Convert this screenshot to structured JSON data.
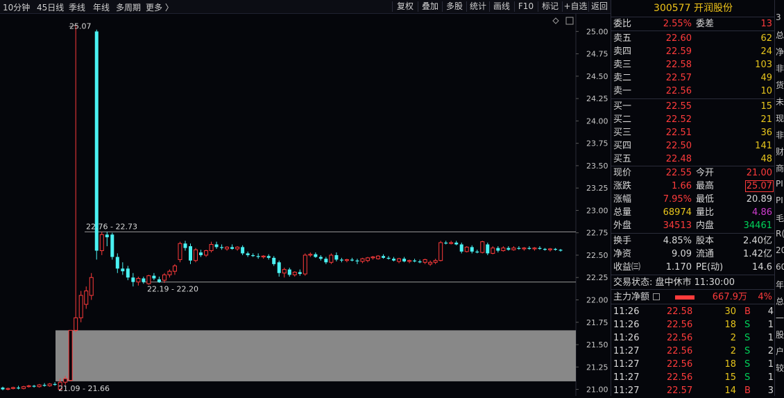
{
  "toolbar": {
    "periods": [
      "10分钟",
      "45日线",
      "季线",
      "年线",
      "多周期",
      "更多 〉"
    ],
    "buttons": [
      "复权",
      "叠加",
      "多股",
      "统计",
      "画线",
      "F10",
      "标记",
      "+自选",
      "返回"
    ]
  },
  "chart_data": {
    "type": "candlestick",
    "y_ticks": [
      "25.00",
      "24.75",
      "24.50",
      "24.25",
      "24.00",
      "23.75",
      "23.50",
      "23.25",
      "23.00",
      "22.75",
      "22.50",
      "22.25",
      "22.00",
      "21.75",
      "21.50",
      "21.25",
      "21.00"
    ],
    "ylim": [
      20.95,
      25.15
    ],
    "annotations": {
      "high_label": "25.07",
      "upper_range": "22.76 - 22.73",
      "lower_range": "22.19 - 22.20",
      "bottom_range": "21.09 - 21.66"
    },
    "upper_line": 22.76,
    "lower_line": 22.2,
    "gray_zone": [
      21.09,
      21.66
    ],
    "candles": [
      {
        "o": 21.02,
        "h": 21.03,
        "l": 20.99,
        "c": 21.0
      },
      {
        "o": 21.0,
        "h": 21.02,
        "l": 20.99,
        "c": 21.01
      },
      {
        "o": 21.01,
        "h": 21.03,
        "l": 21.0,
        "c": 21.02
      },
      {
        "o": 21.02,
        "h": 21.04,
        "l": 21.0,
        "c": 21.01
      },
      {
        "o": 21.01,
        "h": 21.04,
        "l": 21.0,
        "c": 21.03
      },
      {
        "o": 21.03,
        "h": 21.05,
        "l": 21.02,
        "c": 21.04
      },
      {
        "o": 21.04,
        "h": 21.05,
        "l": 21.02,
        "c": 21.03
      },
      {
        "o": 21.03,
        "h": 21.06,
        "l": 21.02,
        "c": 21.05
      },
      {
        "o": 21.05,
        "h": 21.07,
        "l": 21.03,
        "c": 21.04
      },
      {
        "o": 21.04,
        "h": 21.07,
        "l": 21.03,
        "c": 21.06
      },
      {
        "o": 21.06,
        "h": 21.08,
        "l": 21.04,
        "c": 21.05
      },
      {
        "o": 21.0,
        "h": 21.12,
        "l": 20.99,
        "c": 21.08
      },
      {
        "o": 21.08,
        "h": 21.15,
        "l": 21.05,
        "c": 21.12
      },
      {
        "o": 21.1,
        "h": 21.66,
        "l": 21.09,
        "c": 21.66
      },
      {
        "o": 21.66,
        "h": 25.07,
        "l": 21.64,
        "c": 21.8
      },
      {
        "o": 21.8,
        "h": 22.1,
        "l": 21.75,
        "c": 22.05
      },
      {
        "o": 21.95,
        "h": 22.15,
        "l": 21.9,
        "c": 22.1
      },
      {
        "o": 22.05,
        "h": 22.3,
        "l": 22.0,
        "c": 22.25
      },
      {
        "o": 25.0,
        "h": 25.02,
        "l": 22.45,
        "c": 22.55
      },
      {
        "o": 22.55,
        "h": 22.76,
        "l": 22.5,
        "c": 22.73
      },
      {
        "o": 22.73,
        "h": 22.76,
        "l": 22.6,
        "c": 22.7
      },
      {
        "o": 22.73,
        "h": 22.75,
        "l": 22.45,
        "c": 22.48
      },
      {
        "o": 22.48,
        "h": 22.52,
        "l": 22.3,
        "c": 22.35
      },
      {
        "o": 22.35,
        "h": 22.42,
        "l": 22.28,
        "c": 22.32
      },
      {
        "o": 22.35,
        "h": 22.38,
        "l": 22.22,
        "c": 22.25
      },
      {
        "o": 22.25,
        "h": 22.3,
        "l": 22.15,
        "c": 22.2
      },
      {
        "o": 22.2,
        "h": 22.26,
        "l": 22.16,
        "c": 22.24
      },
      {
        "o": 22.24,
        "h": 22.26,
        "l": 22.18,
        "c": 22.2
      },
      {
        "o": 22.18,
        "h": 22.28,
        "l": 22.17,
        "c": 22.27
      },
      {
        "o": 22.27,
        "h": 22.3,
        "l": 22.22,
        "c": 22.24
      },
      {
        "o": 22.23,
        "h": 22.26,
        "l": 22.19,
        "c": 22.2
      },
      {
        "o": 22.22,
        "h": 22.3,
        "l": 22.19,
        "c": 22.28
      },
      {
        "o": 22.28,
        "h": 22.34,
        "l": 22.25,
        "c": 22.32
      },
      {
        "o": 22.32,
        "h": 22.4,
        "l": 22.28,
        "c": 22.38
      },
      {
        "o": 22.45,
        "h": 22.65,
        "l": 22.42,
        "c": 22.63
      },
      {
        "o": 22.63,
        "h": 22.66,
        "l": 22.55,
        "c": 22.58
      },
      {
        "o": 22.6,
        "h": 22.63,
        "l": 22.4,
        "c": 22.44
      },
      {
        "o": 22.44,
        "h": 22.58,
        "l": 22.42,
        "c": 22.56
      },
      {
        "o": 22.53,
        "h": 22.56,
        "l": 22.48,
        "c": 22.5
      },
      {
        "o": 22.5,
        "h": 22.56,
        "l": 22.48,
        "c": 22.55
      },
      {
        "o": 22.55,
        "h": 22.65,
        "l": 22.53,
        "c": 22.62
      },
      {
        "o": 22.62,
        "h": 22.65,
        "l": 22.57,
        "c": 22.59
      },
      {
        "o": 22.59,
        "h": 22.62,
        "l": 22.56,
        "c": 22.58
      },
      {
        "o": 22.57,
        "h": 22.6,
        "l": 22.55,
        "c": 22.59
      },
      {
        "o": 22.59,
        "h": 22.62,
        "l": 22.56,
        "c": 22.57
      },
      {
        "o": 22.57,
        "h": 22.6,
        "l": 22.55,
        "c": 22.59
      },
      {
        "o": 22.59,
        "h": 22.61,
        "l": 22.5,
        "c": 22.52
      },
      {
        "o": 22.52,
        "h": 22.54,
        "l": 22.48,
        "c": 22.5
      },
      {
        "o": 22.5,
        "h": 22.52,
        "l": 22.48,
        "c": 22.49
      },
      {
        "o": 22.49,
        "h": 22.52,
        "l": 22.46,
        "c": 22.48
      },
      {
        "o": 22.48,
        "h": 22.5,
        "l": 22.46,
        "c": 22.49
      },
      {
        "o": 22.49,
        "h": 22.51,
        "l": 22.45,
        "c": 22.47
      },
      {
        "o": 22.47,
        "h": 22.49,
        "l": 22.38,
        "c": 22.4
      },
      {
        "o": 22.42,
        "h": 22.44,
        "l": 22.26,
        "c": 22.3
      },
      {
        "o": 22.3,
        "h": 22.36,
        "l": 22.25,
        "c": 22.34
      },
      {
        "o": 22.34,
        "h": 22.36,
        "l": 22.26,
        "c": 22.28
      },
      {
        "o": 22.28,
        "h": 22.32,
        "l": 22.26,
        "c": 22.31
      },
      {
        "o": 22.31,
        "h": 22.34,
        "l": 22.27,
        "c": 22.29
      },
      {
        "o": 22.29,
        "h": 22.52,
        "l": 22.27,
        "c": 22.5
      },
      {
        "o": 22.5,
        "h": 22.53,
        "l": 22.48,
        "c": 22.51
      },
      {
        "o": 22.51,
        "h": 22.53,
        "l": 22.47,
        "c": 22.48
      },
      {
        "o": 22.48,
        "h": 22.5,
        "l": 22.44,
        "c": 22.46
      },
      {
        "o": 22.46,
        "h": 22.48,
        "l": 22.4,
        "c": 22.42
      },
      {
        "o": 22.42,
        "h": 22.52,
        "l": 22.4,
        "c": 22.5
      },
      {
        "o": 22.5,
        "h": 22.53,
        "l": 22.43,
        "c": 22.45
      },
      {
        "o": 22.45,
        "h": 22.47,
        "l": 22.42,
        "c": 22.44
      },
      {
        "o": 22.44,
        "h": 22.46,
        "l": 22.42,
        "c": 22.45
      },
      {
        "o": 22.45,
        "h": 22.47,
        "l": 22.43,
        "c": 22.44
      },
      {
        "o": 22.44,
        "h": 22.46,
        "l": 22.4,
        "c": 22.43
      },
      {
        "o": 22.43,
        "h": 22.47,
        "l": 22.41,
        "c": 22.46
      },
      {
        "o": 22.44,
        "h": 22.48,
        "l": 22.42,
        "c": 22.47
      },
      {
        "o": 22.47,
        "h": 22.49,
        "l": 22.45,
        "c": 22.48
      },
      {
        "o": 22.46,
        "h": 22.5,
        "l": 22.45,
        "c": 22.49
      },
      {
        "o": 22.49,
        "h": 22.51,
        "l": 22.46,
        "c": 22.47
      },
      {
        "o": 22.47,
        "h": 22.49,
        "l": 22.45,
        "c": 22.46
      },
      {
        "o": 22.46,
        "h": 22.48,
        "l": 22.43,
        "c": 22.44
      },
      {
        "o": 22.43,
        "h": 22.47,
        "l": 22.41,
        "c": 22.46
      },
      {
        "o": 22.46,
        "h": 22.48,
        "l": 22.42,
        "c": 22.43
      },
      {
        "o": 22.43,
        "h": 22.45,
        "l": 22.41,
        "c": 22.44
      },
      {
        "o": 22.44,
        "h": 22.46,
        "l": 22.42,
        "c": 22.43
      },
      {
        "o": 22.43,
        "h": 22.45,
        "l": 22.41,
        "c": 22.42
      },
      {
        "o": 22.42,
        "h": 22.46,
        "l": 22.4,
        "c": 22.45
      },
      {
        "o": 22.4,
        "h": 22.44,
        "l": 22.38,
        "c": 22.42
      },
      {
        "o": 22.42,
        "h": 22.46,
        "l": 22.4,
        "c": 22.44
      },
      {
        "o": 22.44,
        "h": 22.66,
        "l": 22.43,
        "c": 22.64
      },
      {
        "o": 22.64,
        "h": 22.66,
        "l": 22.62,
        "c": 22.63
      },
      {
        "o": 22.63,
        "h": 22.66,
        "l": 22.62,
        "c": 22.64
      },
      {
        "o": 22.64,
        "h": 22.66,
        "l": 22.61,
        "c": 22.62
      },
      {
        "o": 22.62,
        "h": 22.64,
        "l": 22.52,
        "c": 22.54
      },
      {
        "o": 22.54,
        "h": 22.6,
        "l": 22.53,
        "c": 22.59
      },
      {
        "o": 22.59,
        "h": 22.61,
        "l": 22.52,
        "c": 22.54
      },
      {
        "o": 22.54,
        "h": 22.56,
        "l": 22.52,
        "c": 22.53
      },
      {
        "o": 22.53,
        "h": 22.66,
        "l": 22.52,
        "c": 22.65
      },
      {
        "o": 22.62,
        "h": 22.64,
        "l": 22.5,
        "c": 22.52
      },
      {
        "o": 22.52,
        "h": 22.6,
        "l": 22.51,
        "c": 22.58
      },
      {
        "o": 22.58,
        "h": 22.6,
        "l": 22.53,
        "c": 22.55
      },
      {
        "o": 22.55,
        "h": 22.6,
        "l": 22.54,
        "c": 22.58
      },
      {
        "o": 22.58,
        "h": 22.6,
        "l": 22.55,
        "c": 22.56
      },
      {
        "o": 22.56,
        "h": 22.6,
        "l": 22.55,
        "c": 22.58
      },
      {
        "o": 22.58,
        "h": 22.6,
        "l": 22.56,
        "c": 22.57
      },
      {
        "o": 22.57,
        "h": 22.59,
        "l": 22.55,
        "c": 22.58
      },
      {
        "o": 22.58,
        "h": 22.6,
        "l": 22.56,
        "c": 22.57
      },
      {
        "o": 22.57,
        "h": 22.59,
        "l": 22.55,
        "c": 22.58
      },
      {
        "o": 22.58,
        "h": 22.6,
        "l": 22.56,
        "c": 22.57
      },
      {
        "o": 22.57,
        "h": 22.58,
        "l": 22.55,
        "c": 22.56
      },
      {
        "o": 22.56,
        "h": 22.58,
        "l": 22.54,
        "c": 22.57
      },
      {
        "o": 22.57,
        "h": 22.58,
        "l": 22.55,
        "c": 22.56
      },
      {
        "o": 22.56,
        "h": 22.57,
        "l": 22.54,
        "c": 22.55
      }
    ]
  },
  "quote": {
    "title": "300577 开润股份",
    "weibi_label": "委比",
    "weibi_value": "2.55%",
    "weicha_label": "委差",
    "weicha_value": "13",
    "asks": [
      {
        "label": "卖五",
        "price": "22.60",
        "vol": "62"
      },
      {
        "label": "卖四",
        "price": "22.59",
        "vol": "24"
      },
      {
        "label": "卖三",
        "price": "22.58",
        "vol": "103"
      },
      {
        "label": "卖二",
        "price": "22.57",
        "vol": "49"
      },
      {
        "label": "卖一",
        "price": "22.56",
        "vol": "10"
      }
    ],
    "bids": [
      {
        "label": "买一",
        "price": "22.55",
        "vol": "15"
      },
      {
        "label": "买二",
        "price": "22.52",
        "vol": "21"
      },
      {
        "label": "买三",
        "price": "22.51",
        "vol": "36"
      },
      {
        "label": "买四",
        "price": "22.50",
        "vol": "141"
      },
      {
        "label": "买五",
        "price": "22.48",
        "vol": "48"
      }
    ],
    "stats": {
      "xianjia_l": "现价",
      "xianjia_v": "22.55",
      "jinkai_l": "今开",
      "jinkai_v": "21.00",
      "zhangdie_l": "涨跌",
      "zhangdie_v": "1.66",
      "zuigao_l": "最高",
      "zuigao_v": "25.07",
      "zhangfu_l": "涨幅",
      "zhangfu_v": "7.95%",
      "zuidi_l": "最低",
      "zuidi_v": "20.89",
      "zongliang_l": "总量",
      "zongliang_v": "68974",
      "liangbi_l": "量比",
      "liangbi_v": "4.86",
      "waipan_l": "外盘",
      "waipan_v": "34513",
      "neipan_l": "内盘",
      "neipan_v": "34461",
      "huanshou_l": "换手",
      "huanshou_v": "4.85%",
      "guben_l": "股本",
      "guben_v": "2.40亿",
      "jingzi_l": "净资",
      "jingzi_v": "9.09",
      "liutong_l": "流通",
      "liutong_v": "1.42亿",
      "shouyi_l": "收益㈢",
      "shouyi_v": "1.170",
      "pe_l": "PE(动)",
      "pe_v": "14.6"
    },
    "trade_status": "交易状态: 盘中休市 11:30:00",
    "mainflow_label": "主力净额",
    "mainflow_value": "667.9万",
    "mainflow_pct": "4%",
    "ticks": [
      {
        "time": "11:26",
        "price": "22.58",
        "vol": "30",
        "side": "B",
        "n": "4"
      },
      {
        "time": "11:26",
        "price": "22.56",
        "vol": "18",
        "side": "S",
        "n": "1"
      },
      {
        "time": "11:26",
        "price": "22.56",
        "vol": "2",
        "side": "S",
        "n": "1"
      },
      {
        "time": "11:27",
        "price": "22.56",
        "vol": "2",
        "side": "S",
        "n": "2"
      },
      {
        "time": "11:27",
        "price": "22.56",
        "vol": "18",
        "side": "S",
        "n": "1"
      },
      {
        "time": "11:27",
        "price": "22.56",
        "vol": "15",
        "side": "S",
        "n": "1"
      },
      {
        "time": "11:27",
        "price": "22.57",
        "vol": "14",
        "side": "B",
        "n": "3"
      }
    ]
  },
  "edge_chars": [
    "3",
    "总",
    "净",
    "非",
    "货",
    "未",
    "现",
    "非",
    "财",
    "商",
    "PI",
    "PI",
    "毛",
    "R(",
    "20",
    "60",
    "年",
    "总",
    "一",
    "股",
    "户",
    "较"
  ]
}
